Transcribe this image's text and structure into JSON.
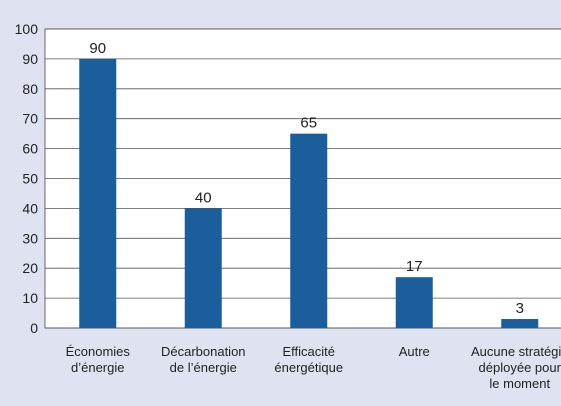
{
  "chart_data": {
    "type": "bar",
    "categories": [
      "Économies\nd’énergie",
      "Décarbonation\nde l’énergie",
      "Efficacité\nénergétique",
      "Autre",
      "Aucune stratégie\ndéployée pour\nle moment"
    ],
    "values": [
      90,
      40,
      65,
      17,
      3
    ],
    "color": "#1a5e9c",
    "ylim": [
      0,
      100
    ],
    "yticks": [
      0,
      10,
      20,
      30,
      40,
      50,
      60,
      70,
      80,
      90,
      100
    ],
    "grid": true
  }
}
